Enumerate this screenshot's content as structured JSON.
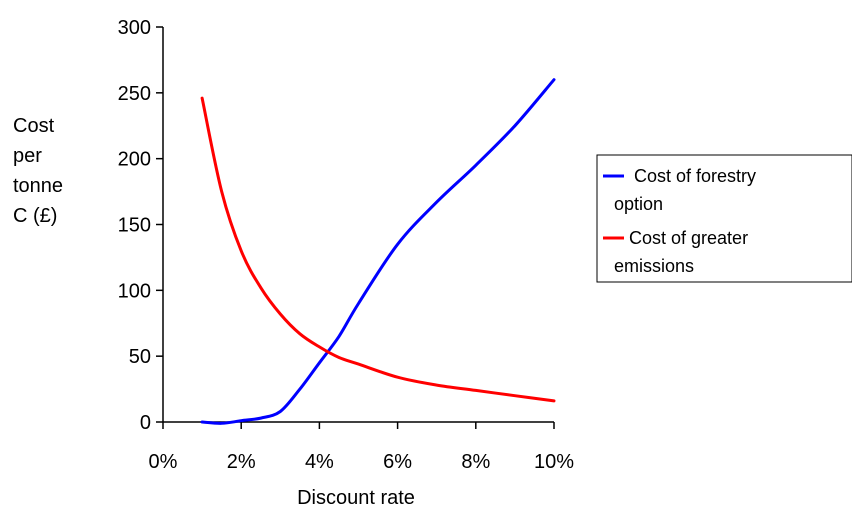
{
  "chart_data": {
    "type": "line",
    "title": "",
    "xlabel": "Discount rate",
    "ylabel_lines": [
      "Cost",
      "per",
      "tonne",
      "C (£)"
    ],
    "xlim": [
      0,
      10
    ],
    "ylim": [
      0,
      300
    ],
    "x_ticks": [
      0,
      2,
      4,
      6,
      8,
      10
    ],
    "x_tick_labels": [
      "0%",
      "2%",
      "4%",
      "6%",
      "8%",
      "10%"
    ],
    "y_ticks": [
      0,
      50,
      100,
      150,
      200,
      250,
      300
    ],
    "y_tick_labels": [
      "0",
      "50",
      "100",
      "150",
      "200",
      "250",
      "300"
    ],
    "grid": false,
    "legend_position": "right",
    "series": [
      {
        "name_lines": [
          " Cost of forestry",
          "option"
        ],
        "color": "#0000ff",
        "x": [
          1.0,
          1.5,
          2.0,
          2.5,
          3.0,
          3.5,
          4.0,
          4.5,
          5.0,
          6.0,
          7.0,
          8.0,
          9.0,
          10.0
        ],
        "y": [
          0,
          -1,
          1,
          3,
          8,
          25,
          45,
          65,
          90,
          135,
          167,
          195,
          225,
          260
        ]
      },
      {
        "name_lines": [
          "Cost of greater",
          "emissions"
        ],
        "color": "#ff0000",
        "x": [
          1.0,
          1.5,
          2.0,
          2.5,
          3.0,
          3.5,
          4.0,
          4.5,
          5.0,
          6.0,
          7.0,
          8.0,
          9.0,
          10.0
        ],
        "y": [
          246,
          175,
          130,
          102,
          82,
          67,
          57,
          49,
          44,
          34,
          28,
          24,
          20,
          16
        ]
      }
    ]
  }
}
